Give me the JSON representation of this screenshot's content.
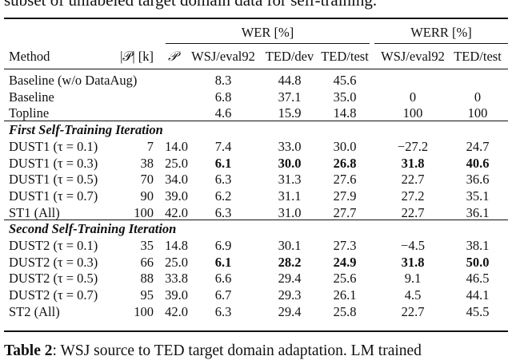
{
  "top_caption": "subset of unlabeled target domain data for self-training.",
  "header": {
    "wer_group": "WER [%]",
    "werr_group": "WERR [%]",
    "method": "Method",
    "p_size": "|𝒫| [k]",
    "p": "𝒫",
    "wsj": "WSJ/eval92",
    "ted_dev": "TED/dev",
    "ted_test": "TED/test",
    "werr_wsj": "WSJ/eval92",
    "werr_ted": "TED/test"
  },
  "rows": [
    {
      "method": "Baseline (w/o DataAug)",
      "psize": "",
      "p": "",
      "wsj": "8.3",
      "dev": "44.8",
      "test": "45.6",
      "werr_wsj": "",
      "werr_ted": ""
    },
    {
      "method": "Baseline",
      "psize": "",
      "p": "",
      "wsj": "6.8",
      "dev": "37.1",
      "test": "35.0",
      "werr_wsj": "0",
      "werr_ted": "0"
    },
    {
      "method": "Topline",
      "psize": "",
      "p": "",
      "wsj": "4.6",
      "dev": "15.9",
      "test": "14.8",
      "werr_wsj": "100",
      "werr_ted": "100"
    },
    {
      "section": "First Self-Training Iteration"
    },
    {
      "method": "DUST1 (τ = 0.1)",
      "psize": "7",
      "p": "14.0",
      "wsj": "7.4",
      "dev": "33.0",
      "test": "30.0",
      "werr_wsj": "−27.2",
      "werr_ted": "24.7"
    },
    {
      "method": "DUST1 (τ = 0.3)",
      "psize": "38",
      "p": "25.0",
      "wsj": "6.1",
      "dev": "30.0",
      "test": "26.8",
      "werr_wsj": "31.8",
      "werr_ted": "40.6",
      "bold": true
    },
    {
      "method": "DUST1 (τ = 0.5)",
      "psize": "70",
      "p": "34.0",
      "wsj": "6.3",
      "dev": "31.3",
      "test": "27.6",
      "werr_wsj": "22.7",
      "werr_ted": "36.6"
    },
    {
      "method": "DUST1 (τ = 0.7)",
      "psize": "90",
      "p": "39.0",
      "wsj": "6.2",
      "dev": "31.1",
      "test": "27.9",
      "werr_wsj": "27.2",
      "werr_ted": "35.1"
    },
    {
      "method": "ST1 (All)",
      "psize": "100",
      "p": "42.0",
      "wsj": "6.3",
      "dev": "31.0",
      "test": "27.7",
      "werr_wsj": "22.7",
      "werr_ted": "36.1"
    },
    {
      "section": "Second Self-Training Iteration"
    },
    {
      "method": "DUST2 (τ = 0.1)",
      "psize": "35",
      "p": "14.8",
      "wsj": "6.9",
      "dev": "30.1",
      "test": "27.3",
      "werr_wsj": "−4.5",
      "werr_ted": "38.1"
    },
    {
      "method": "DUST2 (τ = 0.3)",
      "psize": "66",
      "p": "25.0",
      "wsj": "6.1",
      "dev": "28.2",
      "test": "24.9",
      "werr_wsj": "31.8",
      "werr_ted": "50.0",
      "bold": true
    },
    {
      "method": "DUST2 (τ = 0.5)",
      "psize": "88",
      "p": "33.8",
      "wsj": "6.6",
      "dev": "29.4",
      "test": "25.6",
      "werr_wsj": "9.1",
      "werr_ted": "46.5"
    },
    {
      "method": "DUST2 (τ = 0.7)",
      "psize": "95",
      "p": "39.0",
      "wsj": "6.7",
      "dev": "29.3",
      "test": "26.1",
      "werr_wsj": "4.5",
      "werr_ted": "44.1"
    },
    {
      "method": "ST2 (All)",
      "psize": "100",
      "p": "42.0",
      "wsj": "6.3",
      "dev": "29.4",
      "test": "25.8",
      "werr_wsj": "22.7",
      "werr_ted": "45.5"
    }
  ],
  "bottom_caption": {
    "label": "Table 2",
    "text": ": WSJ source to TED target domain adaptation. LM trained"
  }
}
